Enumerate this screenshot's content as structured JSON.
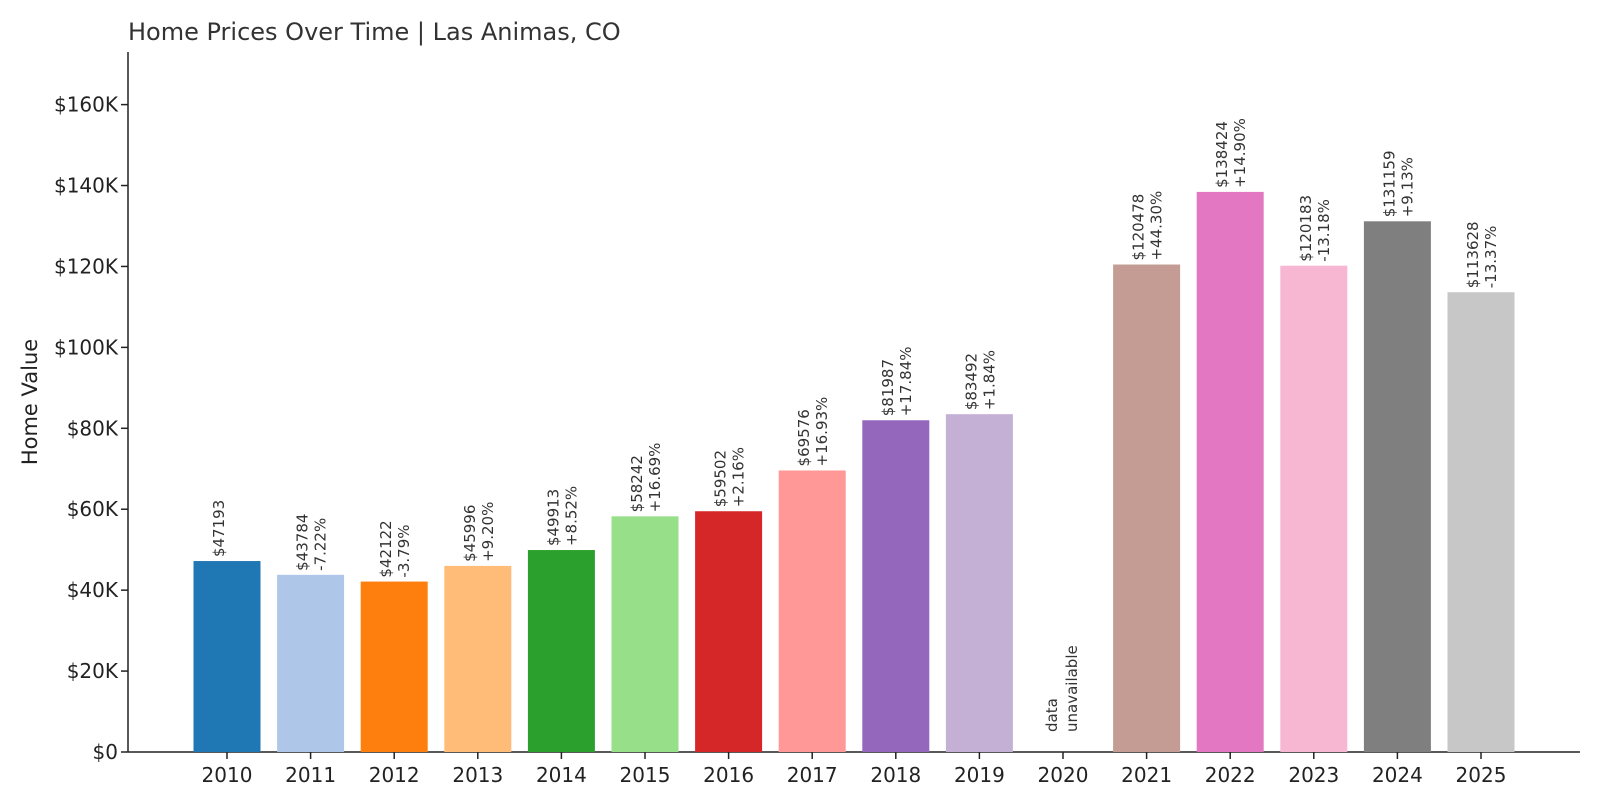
{
  "chart_data": {
    "type": "bar",
    "title": "Home Prices Over Time | Las Animas, CO",
    "xlabel": "",
    "ylabel": "Home Value",
    "ylim": [
      0,
      173000
    ],
    "yticks": [
      {
        "value": 0,
        "label": "$0"
      },
      {
        "value": 20000,
        "label": "$20K"
      },
      {
        "value": 40000,
        "label": "$40K"
      },
      {
        "value": 60000,
        "label": "$60K"
      },
      {
        "value": 80000,
        "label": "$80K"
      },
      {
        "value": 100000,
        "label": "$100K"
      },
      {
        "value": 120000,
        "label": "$120K"
      },
      {
        "value": 140000,
        "label": "$140K"
      },
      {
        "value": 160000,
        "label": "$160K"
      }
    ],
    "grid": false,
    "legend": "none",
    "unavailable_label": [
      "data",
      "unavailable"
    ],
    "bars": [
      {
        "category": "2010",
        "value": 47193,
        "value_label": "$47193",
        "change_label": "",
        "color": "#1f77b4"
      },
      {
        "category": "2011",
        "value": 43784,
        "value_label": "$43784",
        "change_label": "-7.22%",
        "color": "#aec7e8"
      },
      {
        "category": "2012",
        "value": 42122,
        "value_label": "$42122",
        "change_label": "-3.79%",
        "color": "#ff7f0e"
      },
      {
        "category": "2013",
        "value": 45996,
        "value_label": "$45996",
        "change_label": "+9.20%",
        "color": "#ffbb78"
      },
      {
        "category": "2014",
        "value": 49913,
        "value_label": "$49913",
        "change_label": "+8.52%",
        "color": "#2ca02c"
      },
      {
        "category": "2015",
        "value": 58242,
        "value_label": "$58242",
        "change_label": "+16.69%",
        "color": "#98df8a"
      },
      {
        "category": "2016",
        "value": 59502,
        "value_label": "$59502",
        "change_label": "+2.16%",
        "color": "#d62728"
      },
      {
        "category": "2017",
        "value": 69576,
        "value_label": "$69576",
        "change_label": "+16.93%",
        "color": "#ff9896"
      },
      {
        "category": "2018",
        "value": 81987,
        "value_label": "$81987",
        "change_label": "+17.84%",
        "color": "#9467bd"
      },
      {
        "category": "2019",
        "value": 83492,
        "value_label": "$83492",
        "change_label": "+1.84%",
        "color": "#c5b0d5"
      },
      {
        "category": "2020",
        "value": null,
        "value_label": "",
        "change_label": "",
        "color": "#8c564b"
      },
      {
        "category": "2021",
        "value": 120478,
        "value_label": "$120478",
        "change_label": "+44.30%",
        "color": "#c49c94"
      },
      {
        "category": "2022",
        "value": 138424,
        "value_label": "$138424",
        "change_label": "+14.90%",
        "color": "#e377c2"
      },
      {
        "category": "2023",
        "value": 120183,
        "value_label": "$120183",
        "change_label": "-13.18%",
        "color": "#f7b6d2"
      },
      {
        "category": "2024",
        "value": 131159,
        "value_label": "$131159",
        "change_label": "+9.13%",
        "color": "#7f7f7f"
      },
      {
        "category": "2025",
        "value": 113628,
        "value_label": "$113628",
        "change_label": "-13.37%",
        "color": "#c7c7c7"
      }
    ]
  }
}
